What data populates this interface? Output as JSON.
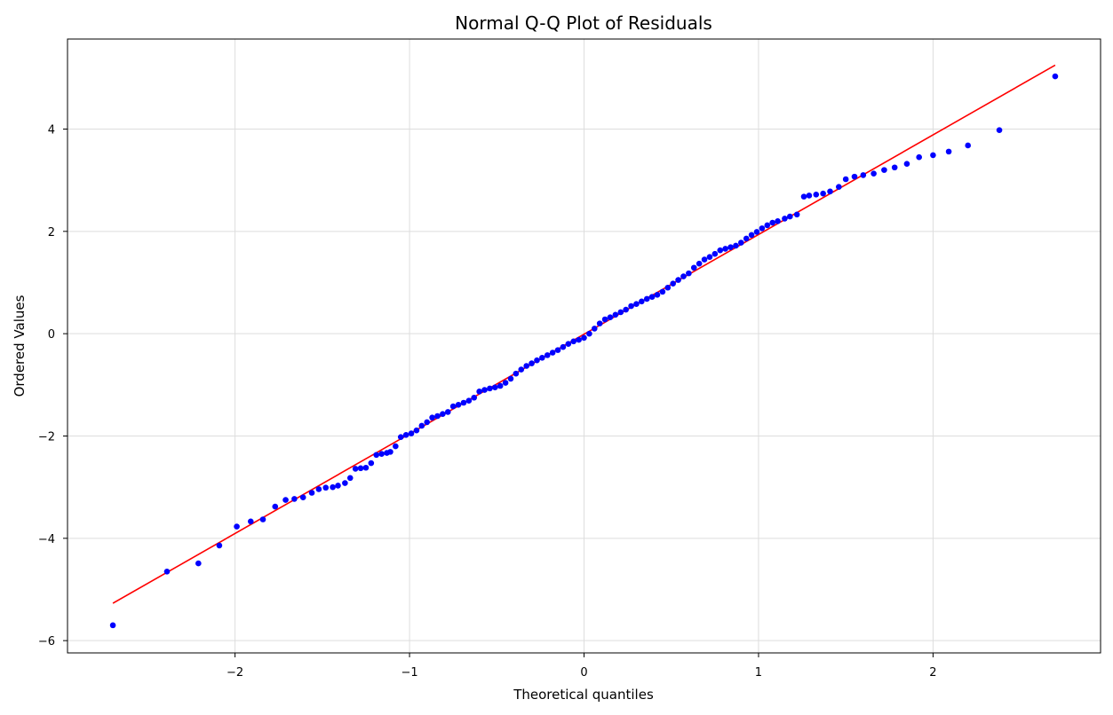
{
  "chart_data": {
    "type": "scatter",
    "title": "Normal Q-Q Plot of Residuals",
    "xlabel": "Theoretical quantiles",
    "ylabel": "Ordered Values",
    "xlim": [
      -2.96,
      2.96
    ],
    "ylim": [
      -6.24,
      5.76
    ],
    "x_ticks": [
      -2,
      -1,
      0,
      1,
      2
    ],
    "x_tick_labels": [
      "−2",
      "−1",
      "0",
      "1",
      "2"
    ],
    "y_ticks": [
      -6,
      -4,
      -2,
      0,
      2,
      4
    ],
    "y_tick_labels": [
      "−6",
      "−4",
      "−2",
      "0",
      "2",
      "4"
    ],
    "grid": true,
    "legend": "none",
    "colors": {
      "points": "#0000ff",
      "fit_line": "#ff0000",
      "grid": "#dddddd",
      "axes": "#000000"
    },
    "fit_line": {
      "name": "",
      "x": [
        -2.7,
        2.7
      ],
      "y": [
        -5.27,
        5.25
      ]
    },
    "series": [
      {
        "name": "",
        "kind": "scatter",
        "points": [
          [
            -2.7,
            -5.7
          ],
          [
            -2.39,
            -4.65
          ],
          [
            -2.21,
            -4.49
          ],
          [
            -2.09,
            -4.14
          ],
          [
            -1.99,
            -3.77
          ],
          [
            -1.91,
            -3.67
          ],
          [
            -1.84,
            -3.63
          ],
          [
            -1.77,
            -3.38
          ],
          [
            -1.71,
            -3.25
          ],
          [
            -1.66,
            -3.23
          ],
          [
            -1.61,
            -3.2
          ],
          [
            -1.56,
            -3.11
          ],
          [
            -1.52,
            -3.04
          ],
          [
            -1.48,
            -3.01
          ],
          [
            -1.44,
            -3.0
          ],
          [
            -1.41,
            -2.97
          ],
          [
            -1.37,
            -2.92
          ],
          [
            -1.34,
            -2.82
          ],
          [
            -1.31,
            -2.64
          ],
          [
            -1.28,
            -2.63
          ],
          [
            -1.25,
            -2.62
          ],
          [
            -1.22,
            -2.53
          ],
          [
            -1.19,
            -2.37
          ],
          [
            -1.16,
            -2.35
          ],
          [
            -1.13,
            -2.33
          ],
          [
            -1.11,
            -2.31
          ],
          [
            -1.08,
            -2.2
          ],
          [
            -1.05,
            -2.02
          ],
          [
            -1.02,
            -1.98
          ],
          [
            -0.99,
            -1.95
          ],
          [
            -0.96,
            -1.89
          ],
          [
            -0.93,
            -1.8
          ],
          [
            -0.9,
            -1.73
          ],
          [
            -0.87,
            -1.64
          ],
          [
            -0.84,
            -1.61
          ],
          [
            -0.81,
            -1.57
          ],
          [
            -0.78,
            -1.53
          ],
          [
            -0.75,
            -1.42
          ],
          [
            -0.72,
            -1.39
          ],
          [
            -0.69,
            -1.35
          ],
          [
            -0.66,
            -1.31
          ],
          [
            -0.63,
            -1.25
          ],
          [
            -0.6,
            -1.13
          ],
          [
            -0.57,
            -1.1
          ],
          [
            -0.54,
            -1.07
          ],
          [
            -0.51,
            -1.05
          ],
          [
            -0.48,
            -1.02
          ],
          [
            -0.45,
            -0.96
          ],
          [
            -0.42,
            -0.88
          ],
          [
            -0.39,
            -0.78
          ],
          [
            -0.36,
            -0.7
          ],
          [
            -0.33,
            -0.63
          ],
          [
            -0.3,
            -0.58
          ],
          [
            -0.27,
            -0.52
          ],
          [
            -0.24,
            -0.47
          ],
          [
            -0.21,
            -0.42
          ],
          [
            -0.18,
            -0.37
          ],
          [
            -0.15,
            -0.32
          ],
          [
            -0.12,
            -0.26
          ],
          [
            -0.09,
            -0.2
          ],
          [
            -0.06,
            -0.15
          ],
          [
            -0.03,
            -0.12
          ],
          [
            0.0,
            -0.08
          ],
          [
            0.03,
            0.0
          ],
          [
            0.06,
            0.1
          ],
          [
            0.09,
            0.2
          ],
          [
            0.12,
            0.28
          ],
          [
            0.15,
            0.32
          ],
          [
            0.18,
            0.37
          ],
          [
            0.21,
            0.42
          ],
          [
            0.24,
            0.47
          ],
          [
            0.27,
            0.54
          ],
          [
            0.3,
            0.58
          ],
          [
            0.33,
            0.63
          ],
          [
            0.36,
            0.68
          ],
          [
            0.39,
            0.72
          ],
          [
            0.42,
            0.76
          ],
          [
            0.45,
            0.82
          ],
          [
            0.48,
            0.9
          ],
          [
            0.51,
            0.98
          ],
          [
            0.54,
            1.05
          ],
          [
            0.57,
            1.12
          ],
          [
            0.6,
            1.18
          ],
          [
            0.63,
            1.29
          ],
          [
            0.66,
            1.37
          ],
          [
            0.69,
            1.45
          ],
          [
            0.72,
            1.5
          ],
          [
            0.75,
            1.56
          ],
          [
            0.78,
            1.63
          ],
          [
            0.81,
            1.66
          ],
          [
            0.84,
            1.69
          ],
          [
            0.87,
            1.72
          ],
          [
            0.9,
            1.78
          ],
          [
            0.93,
            1.86
          ],
          [
            0.96,
            1.93
          ],
          [
            0.99,
            1.99
          ],
          [
            1.02,
            2.06
          ],
          [
            1.05,
            2.12
          ],
          [
            1.08,
            2.17
          ],
          [
            1.11,
            2.2
          ],
          [
            1.15,
            2.25
          ],
          [
            1.18,
            2.29
          ],
          [
            1.22,
            2.33
          ],
          [
            1.26,
            2.68
          ],
          [
            1.29,
            2.7
          ],
          [
            1.33,
            2.72
          ],
          [
            1.37,
            2.74
          ],
          [
            1.41,
            2.78
          ],
          [
            1.46,
            2.87
          ],
          [
            1.5,
            3.02
          ],
          [
            1.55,
            3.07
          ],
          [
            1.6,
            3.1
          ],
          [
            1.66,
            3.13
          ],
          [
            1.72,
            3.2
          ],
          [
            1.78,
            3.25
          ],
          [
            1.85,
            3.32
          ],
          [
            1.92,
            3.45
          ],
          [
            2.0,
            3.49
          ],
          [
            2.09,
            3.56
          ],
          [
            2.2,
            3.68
          ],
          [
            2.38,
            3.98
          ],
          [
            2.7,
            5.03
          ]
        ]
      }
    ]
  }
}
